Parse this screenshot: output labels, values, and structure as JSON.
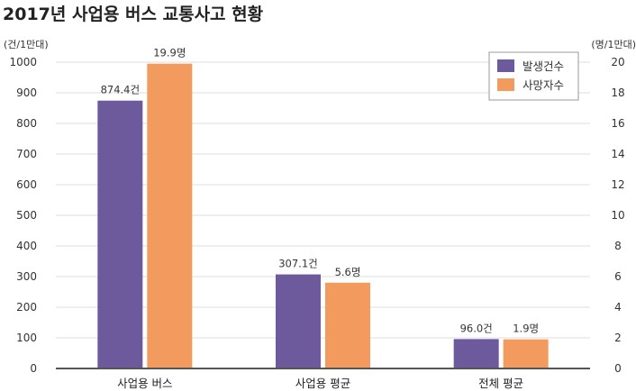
{
  "chart_data": {
    "type": "bar",
    "title": "2017년 사업용 버스 교통사고 현황",
    "categories": [
      "사업용 버스",
      "사업용 평균",
      "전체 평균"
    ],
    "y_left": {
      "unit_label": "(건/1만대)",
      "ylim": [
        0,
        1000
      ],
      "ticks": [
        0,
        100,
        200,
        300,
        400,
        500,
        600,
        700,
        800,
        900,
        1000
      ]
    },
    "y_right": {
      "unit_label": "(명/1만대)",
      "ylim": [
        0,
        20
      ],
      "ticks": [
        0,
        2,
        4,
        6,
        8,
        10,
        12,
        14,
        16,
        18,
        20
      ]
    },
    "series": [
      {
        "name": "발생건수",
        "axis": "left",
        "color": "#6d5a9c",
        "values": [
          874.4,
          307.1,
          96.0
        ],
        "labels": [
          "874.4건",
          "307.1건",
          "96.0건"
        ]
      },
      {
        "name": "사망자수",
        "axis": "right",
        "color": "#f39a5e",
        "values": [
          19.9,
          5.6,
          1.9
        ],
        "labels": [
          "19.9명",
          "5.6명",
          "1.9명"
        ]
      }
    ],
    "grid": true,
    "legend": "top-right"
  }
}
